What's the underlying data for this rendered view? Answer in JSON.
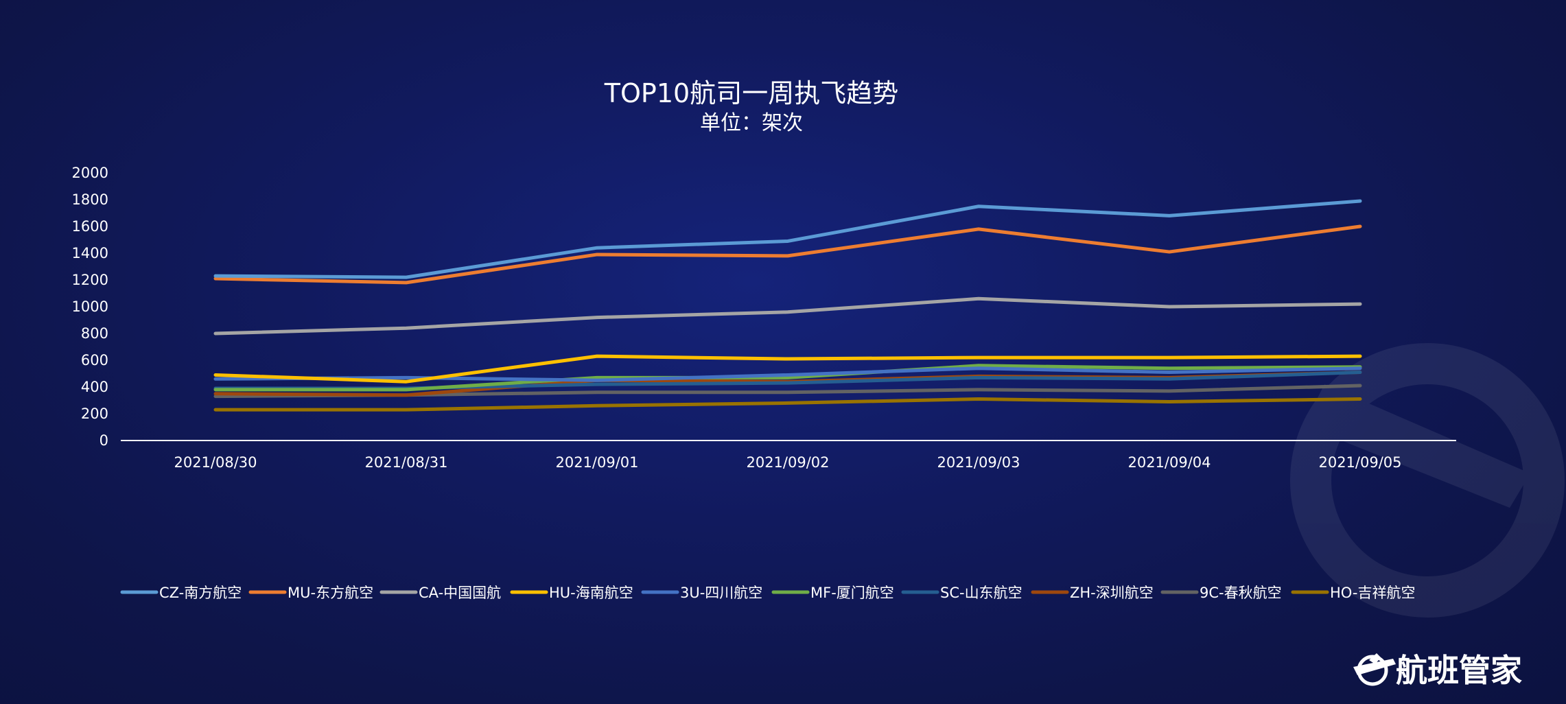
{
  "chart_data": {
    "type": "line",
    "title": "TOP10航司一周执飞趋势",
    "subtitle": "单位：架次",
    "xlabel": "",
    "ylabel": "",
    "ylim": [
      0,
      2000
    ],
    "yticks": [
      0,
      200,
      400,
      600,
      800,
      1000,
      1200,
      1400,
      1600,
      1800,
      2000
    ],
    "categories": [
      "2021/08/30",
      "2021/08/31",
      "2021/09/01",
      "2021/09/02",
      "2021/09/03",
      "2021/09/04",
      "2021/09/05"
    ],
    "grid": false,
    "legend_position": "bottom",
    "series": [
      {
        "name": "CZ-南方航空",
        "color": "#5b9bd5",
        "values": [
          1230,
          1220,
          1440,
          1490,
          1750,
          1680,
          1790
        ]
      },
      {
        "name": "MU-东方航空",
        "color": "#ed7d31",
        "values": [
          1210,
          1180,
          1390,
          1380,
          1580,
          1410,
          1600
        ]
      },
      {
        "name": "CA-中国国航",
        "color": "#a5a5a5",
        "values": [
          800,
          840,
          920,
          960,
          1060,
          1000,
          1020
        ]
      },
      {
        "name": "HU-海南航空",
        "color": "#ffc000",
        "values": [
          490,
          440,
          630,
          610,
          620,
          620,
          630
        ]
      },
      {
        "name": "3U-四川航空",
        "color": "#4472c4",
        "values": [
          460,
          470,
          450,
          490,
          540,
          510,
          540
        ]
      },
      {
        "name": "MF-厦门航空",
        "color": "#70ad47",
        "values": [
          380,
          380,
          470,
          470,
          560,
          540,
          550
        ]
      },
      {
        "name": "SC-山东航空",
        "color": "#255e91",
        "values": [
          390,
          390,
          420,
          430,
          470,
          460,
          510
        ]
      },
      {
        "name": "ZH-深圳航空",
        "color": "#9e480e",
        "values": [
          350,
          340,
          450,
          440,
          480,
          470,
          510
        ]
      },
      {
        "name": "9C-春秋航空",
        "color": "#636363",
        "values": [
          330,
          340,
          360,
          360,
          380,
          370,
          410
        ]
      },
      {
        "name": "HO-吉祥航空",
        "color": "#997300",
        "values": [
          230,
          230,
          260,
          280,
          310,
          290,
          310
        ]
      }
    ]
  },
  "brand": {
    "name": "航班管家",
    "icon": "airplane-logo-icon"
  }
}
